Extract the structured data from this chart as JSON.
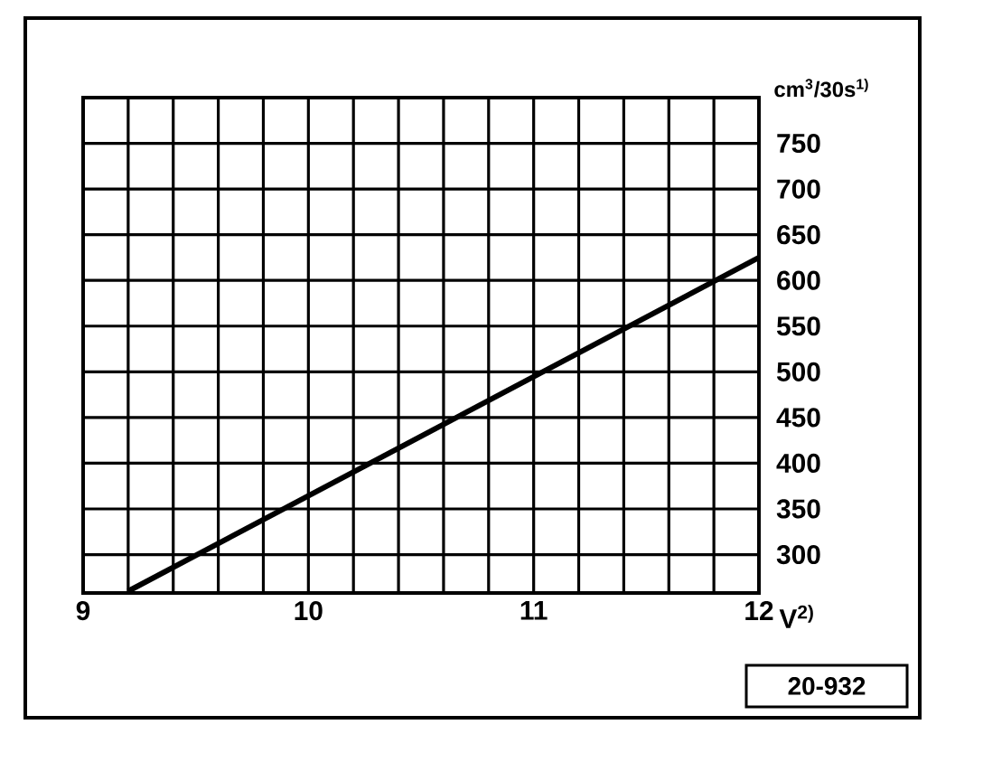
{
  "chart_data": {
    "type": "line",
    "xlabel": "V$^{2)}$",
    "ylabel": "cm$^{3}$/30s$^{1)}$",
    "x": [
      9.2,
      12
    ],
    "values": [
      260,
      625
    ],
    "color": "#000000",
    "xlim": [
      9,
      12
    ],
    "ylim": [
      258,
      800
    ],
    "xticks": [
      9,
      {
        "value": 9.2,
        "label": null
      },
      {
        "value": 9.4,
        "label": null
      },
      {
        "value": 9.6,
        "label": null
      },
      {
        "value": 9.8,
        "label": null
      },
      10,
      {
        "value": 10.2,
        "label": null
      },
      {
        "value": 10.4,
        "label": null
      },
      {
        "value": 10.6,
        "label": null
      },
      {
        "value": 10.8,
        "label": null
      },
      11,
      {
        "value": 11.2,
        "label": null
      },
      {
        "value": 11.4,
        "label": null
      },
      {
        "value": 11.6,
        "label": null
      },
      {
        "value": 11.8,
        "label": null
      },
      12
    ],
    "yticks": [
      300,
      350,
      400,
      450,
      500,
      550,
      600,
      650,
      700,
      750,
      {
        "value": 800,
        "label": null
      }
    ],
    "grid": true,
    "annotations": [
      "20-932"
    ]
  }
}
